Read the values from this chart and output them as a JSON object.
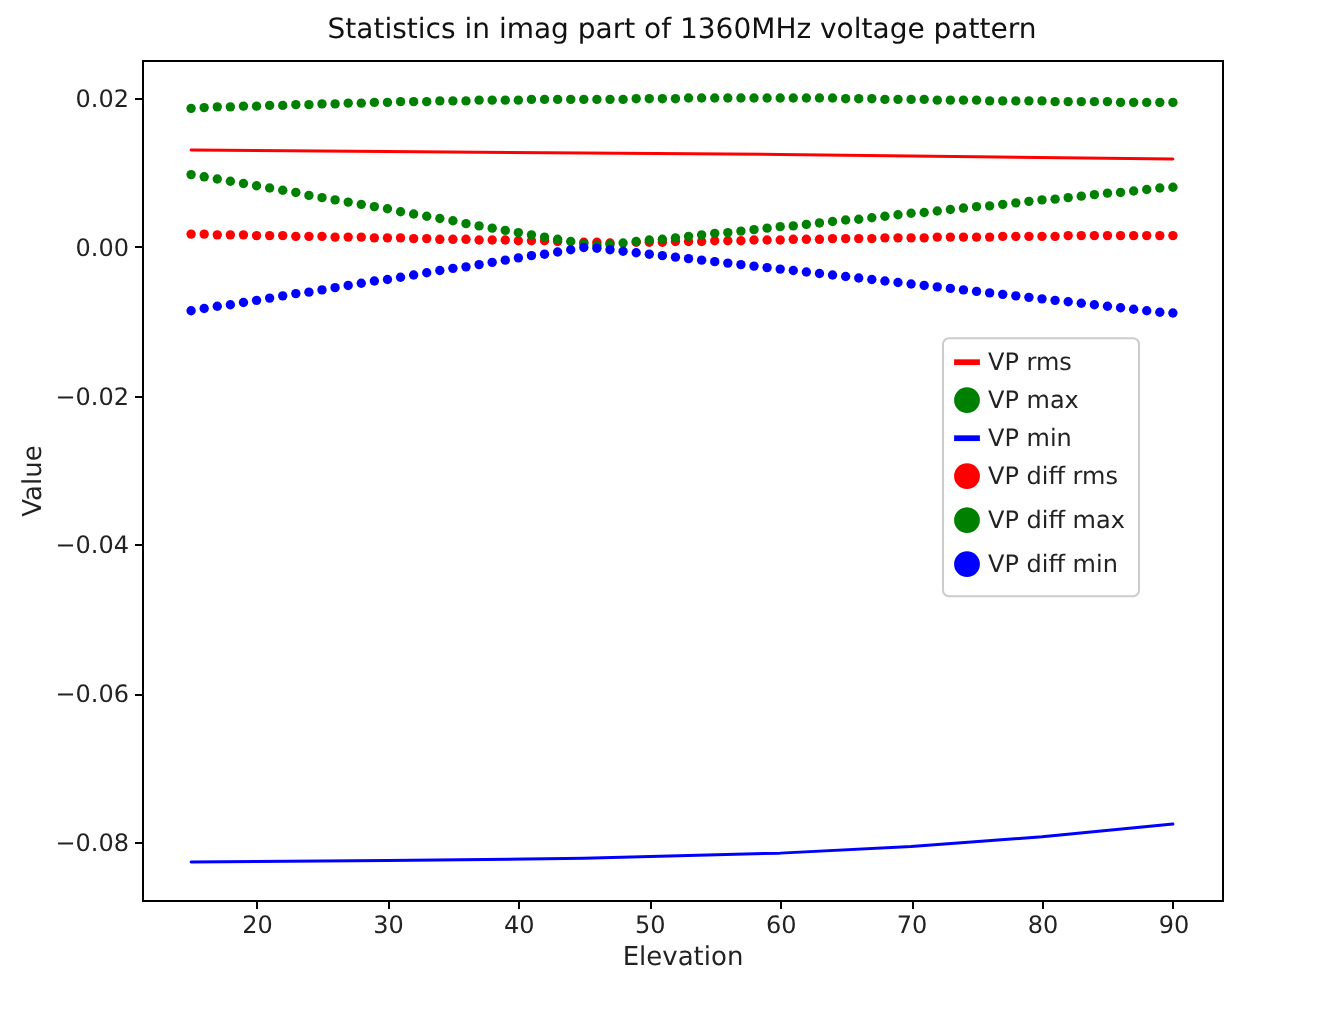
{
  "chart_data": {
    "type": "scatter",
    "title": "Statistics in imag part of 1360MHz voltage pattern",
    "xlabel": "Elevation",
    "ylabel": "Value",
    "xlim": [
      11.25,
      93.75
    ],
    "ylim": [
      -0.0878,
      0.0251
    ],
    "xticks": [
      20,
      30,
      40,
      50,
      60,
      70,
      80,
      90
    ],
    "yticks": [
      {
        "value": -0.08,
        "label": "−0.08"
      },
      {
        "value": -0.06,
        "label": "−0.06"
      },
      {
        "value": -0.04,
        "label": "−0.04"
      },
      {
        "value": -0.02,
        "label": "−0.02"
      },
      {
        "value": 0,
        "label": "0.00"
      },
      {
        "value": 0.02,
        "label": "0.02"
      }
    ],
    "grid": false,
    "legend": "right",
    "marker": "circle",
    "x": [
      15,
      16,
      17,
      18,
      19,
      20,
      21,
      22,
      23,
      24,
      25,
      26,
      27,
      28,
      29,
      30,
      31,
      32,
      33,
      34,
      35,
      36,
      37,
      38,
      39,
      40,
      41,
      42,
      43,
      44,
      45,
      46,
      47,
      48,
      49,
      50,
      51,
      52,
      53,
      54,
      55,
      56,
      57,
      58,
      59,
      60,
      61,
      62,
      63,
      64,
      65,
      66,
      67,
      68,
      69,
      70,
      71,
      72,
      73,
      74,
      75,
      76,
      77,
      78,
      79,
      80,
      81,
      82,
      83,
      84,
      85,
      86,
      87,
      88,
      89,
      90
    ],
    "series": [
      {
        "name": "VP rms",
        "type": "line",
        "marker": "none",
        "color": "#ff0000",
        "x": [
          15,
          30,
          45,
          60,
          75,
          90
        ],
        "values": [
          0.013,
          0.0128,
          0.0126,
          0.0124,
          0.0121,
          0.0118
        ]
      },
      {
        "name": "VP max",
        "type": "scatter",
        "color": "#008000",
        "values": [
          0.0186,
          0.0187,
          0.0188,
          0.0188,
          0.0189,
          0.0189,
          0.019,
          0.019,
          0.0191,
          0.0191,
          0.0192,
          0.0192,
          0.0193,
          0.0193,
          0.0194,
          0.0194,
          0.0195,
          0.0195,
          0.0195,
          0.0196,
          0.0196,
          0.0196,
          0.0197,
          0.0197,
          0.0197,
          0.0197,
          0.0198,
          0.0198,
          0.0198,
          0.0198,
          0.0198,
          0.0198,
          0.0198,
          0.0198,
          0.0199,
          0.0199,
          0.0199,
          0.0199,
          0.02,
          0.02,
          0.02,
          0.02,
          0.02,
          0.02,
          0.02,
          0.02,
          0.02,
          0.02,
          0.02,
          0.02,
          0.0199,
          0.0199,
          0.0199,
          0.0198,
          0.0198,
          0.0198,
          0.0198,
          0.0197,
          0.0197,
          0.0197,
          0.0197,
          0.0196,
          0.0196,
          0.0196,
          0.0196,
          0.0196,
          0.0195,
          0.0195,
          0.0195,
          0.0195,
          0.0195,
          0.0194,
          0.0194,
          0.0194,
          0.0194,
          0.0194
        ]
      },
      {
        "name": "VP min",
        "type": "line",
        "marker": "none",
        "color": "#0000ff",
        "x": [
          15,
          30,
          45,
          60,
          70,
          80,
          90
        ],
        "values": [
          -0.0827,
          -0.0825,
          -0.0822,
          -0.0815,
          -0.0806,
          -0.0793,
          -0.0776
        ]
      },
      {
        "name": "VP diff rms",
        "type": "scatter",
        "color": "#ff0000",
        "values": [
          0.0017,
          0.0017,
          0.0016,
          0.0016,
          0.0016,
          0.0015,
          0.0015,
          0.0015,
          0.0014,
          0.0014,
          0.0014,
          0.0013,
          0.0013,
          0.0013,
          0.0012,
          0.0012,
          0.0012,
          0.0011,
          0.0011,
          0.001,
          0.001,
          0.001,
          0.0009,
          0.0009,
          0.0009,
          0.0008,
          0.0008,
          0.0008,
          0.0007,
          null,
          0.0006,
          0.0006,
          0.0005,
          null,
          0.0006,
          0.0006,
          0.0006,
          0.0007,
          0.0007,
          0.0007,
          0.0008,
          0.0008,
          0.0008,
          0.0009,
          0.0009,
          0.0009,
          0.001,
          0.001,
          0.001,
          0.0011,
          0.0011,
          0.0011,
          0.0011,
          0.0012,
          0.0012,
          0.0012,
          0.0012,
          0.0013,
          0.0013,
          0.0013,
          0.0013,
          0.0013,
          0.0014,
          0.0014,
          0.0014,
          0.0014,
          0.0014,
          0.0015,
          0.0015,
          0.0015,
          0.0015,
          0.0015,
          0.0015,
          0.0015,
          0.0015,
          0.0015
        ]
      },
      {
        "name": "VP diff max",
        "type": "scatter",
        "color": "#008000",
        "values": [
          0.0097,
          0.0094,
          0.0091,
          0.0088,
          0.0085,
          0.0082,
          0.0079,
          0.0076,
          0.0073,
          0.0069,
          0.0066,
          0.0063,
          0.006,
          0.0057,
          0.0054,
          0.0051,
          0.0047,
          0.0044,
          0.0041,
          0.0038,
          0.0035,
          0.0031,
          0.0028,
          0.0025,
          0.0022,
          0.0019,
          0.0016,
          0.0013,
          0.001,
          0.0007,
          0.0004,
          0.0002,
          0.0003,
          0.0005,
          0.0007,
          0.0009,
          0.001,
          0.0012,
          0.0014,
          0.0016,
          0.0018,
          0.0019,
          0.0021,
          0.0023,
          0.0025,
          0.0027,
          0.0028,
          0.003,
          0.0032,
          0.0034,
          0.0036,
          0.0037,
          0.0039,
          0.0041,
          0.0043,
          0.0045,
          0.0046,
          0.0048,
          0.005,
          0.0052,
          0.0054,
          0.0055,
          0.0057,
          0.0059,
          0.0061,
          0.0063,
          0.0064,
          0.0066,
          0.0068,
          0.007,
          0.0072,
          0.0073,
          0.0075,
          0.0077,
          0.0079,
          0.008
        ]
      },
      {
        "name": "VP diff min",
        "type": "scatter",
        "color": "#0000ff",
        "values": [
          -0.0086,
          -0.0083,
          -0.008,
          -0.0078,
          -0.0075,
          -0.0072,
          -0.0069,
          -0.0066,
          -0.0063,
          -0.0061,
          -0.0058,
          -0.0055,
          -0.0052,
          -0.0049,
          -0.0046,
          -0.0044,
          -0.0041,
          -0.0038,
          -0.0035,
          -0.0032,
          -0.0029,
          -0.0027,
          -0.0024,
          -0.0021,
          -0.0018,
          -0.0015,
          -0.0012,
          -0.001,
          -0.0007,
          -0.0004,
          -0.0001,
          -0.0002,
          -0.0004,
          -0.0006,
          -0.0008,
          -0.001,
          -0.0012,
          -0.0014,
          -0.0016,
          -0.0018,
          -0.002,
          -0.0022,
          -0.0024,
          -0.0026,
          -0.0028,
          -0.003,
          -0.0032,
          -0.0034,
          -0.0036,
          -0.0038,
          -0.004,
          -0.0042,
          -0.0044,
          -0.0046,
          -0.0048,
          -0.005,
          -0.0052,
          -0.0054,
          -0.0056,
          -0.0058,
          -0.006,
          -0.0062,
          -0.0064,
          -0.0066,
          -0.0068,
          -0.007,
          -0.0072,
          -0.0074,
          -0.0076,
          -0.0078,
          -0.008,
          -0.0082,
          -0.0084,
          -0.0086,
          -0.0088,
          -0.0089
        ]
      }
    ]
  }
}
